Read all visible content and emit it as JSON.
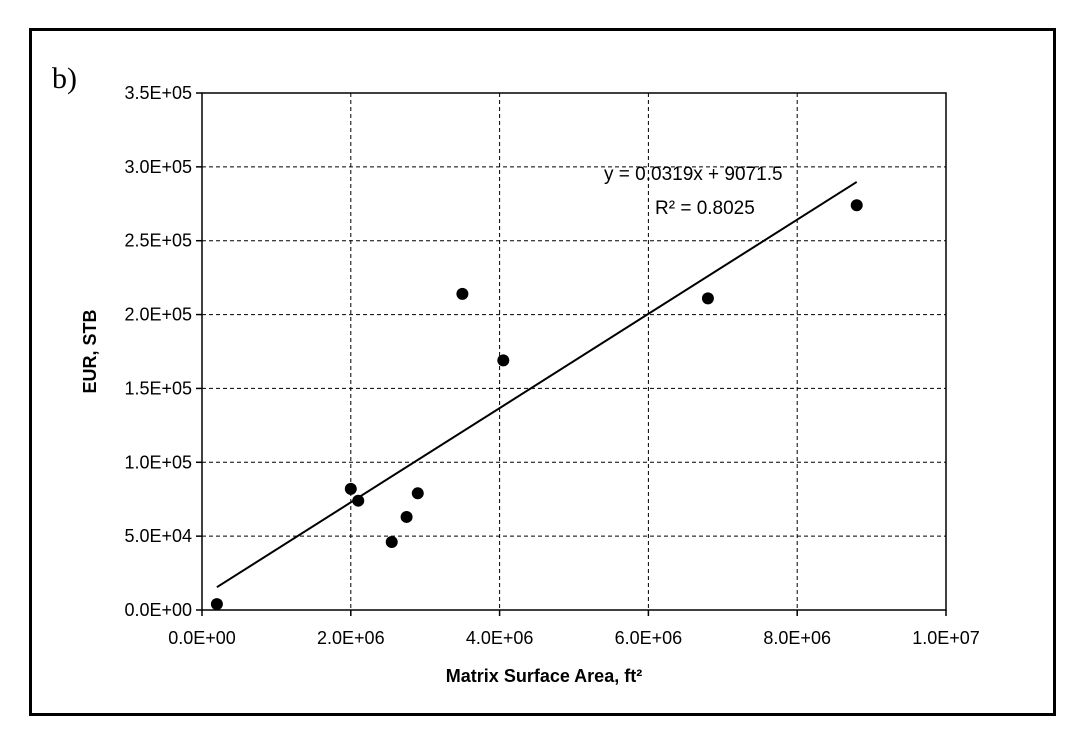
{
  "panel_label": "b)",
  "chart_data": {
    "type": "scatter",
    "xlabel": "Matrix Surface Area, ft²",
    "ylabel": "EUR, STB",
    "xlim": [
      0,
      10000000
    ],
    "ylim": [
      0,
      350000
    ],
    "grid": true,
    "x_ticks": [
      "0.0E+00",
      "2.0E+06",
      "4.0E+06",
      "6.0E+06",
      "8.0E+06",
      "1.0E+07"
    ],
    "y_ticks": [
      "0.0E+00",
      "5.0E+04",
      "1.0E+05",
      "1.5E+05",
      "2.0E+05",
      "2.5E+05",
      "3.0E+05",
      "3.5E+05"
    ],
    "series": [
      {
        "x": [
          200000,
          2000000,
          2100000,
          2550000,
          2750000,
          2900000,
          3500000,
          4050000,
          6800000,
          8800000
        ],
        "y": [
          4000,
          82000,
          74000,
          46000,
          63000,
          79000,
          214000,
          169000,
          211000,
          274000
        ]
      }
    ],
    "trendline": {
      "slope": 0.0319,
      "intercept": 9071.5,
      "x_range": [
        200000,
        8800000
      ],
      "equation": "y = 0.0319x + 9071.5",
      "r_squared": "R² = 0.8025"
    }
  }
}
